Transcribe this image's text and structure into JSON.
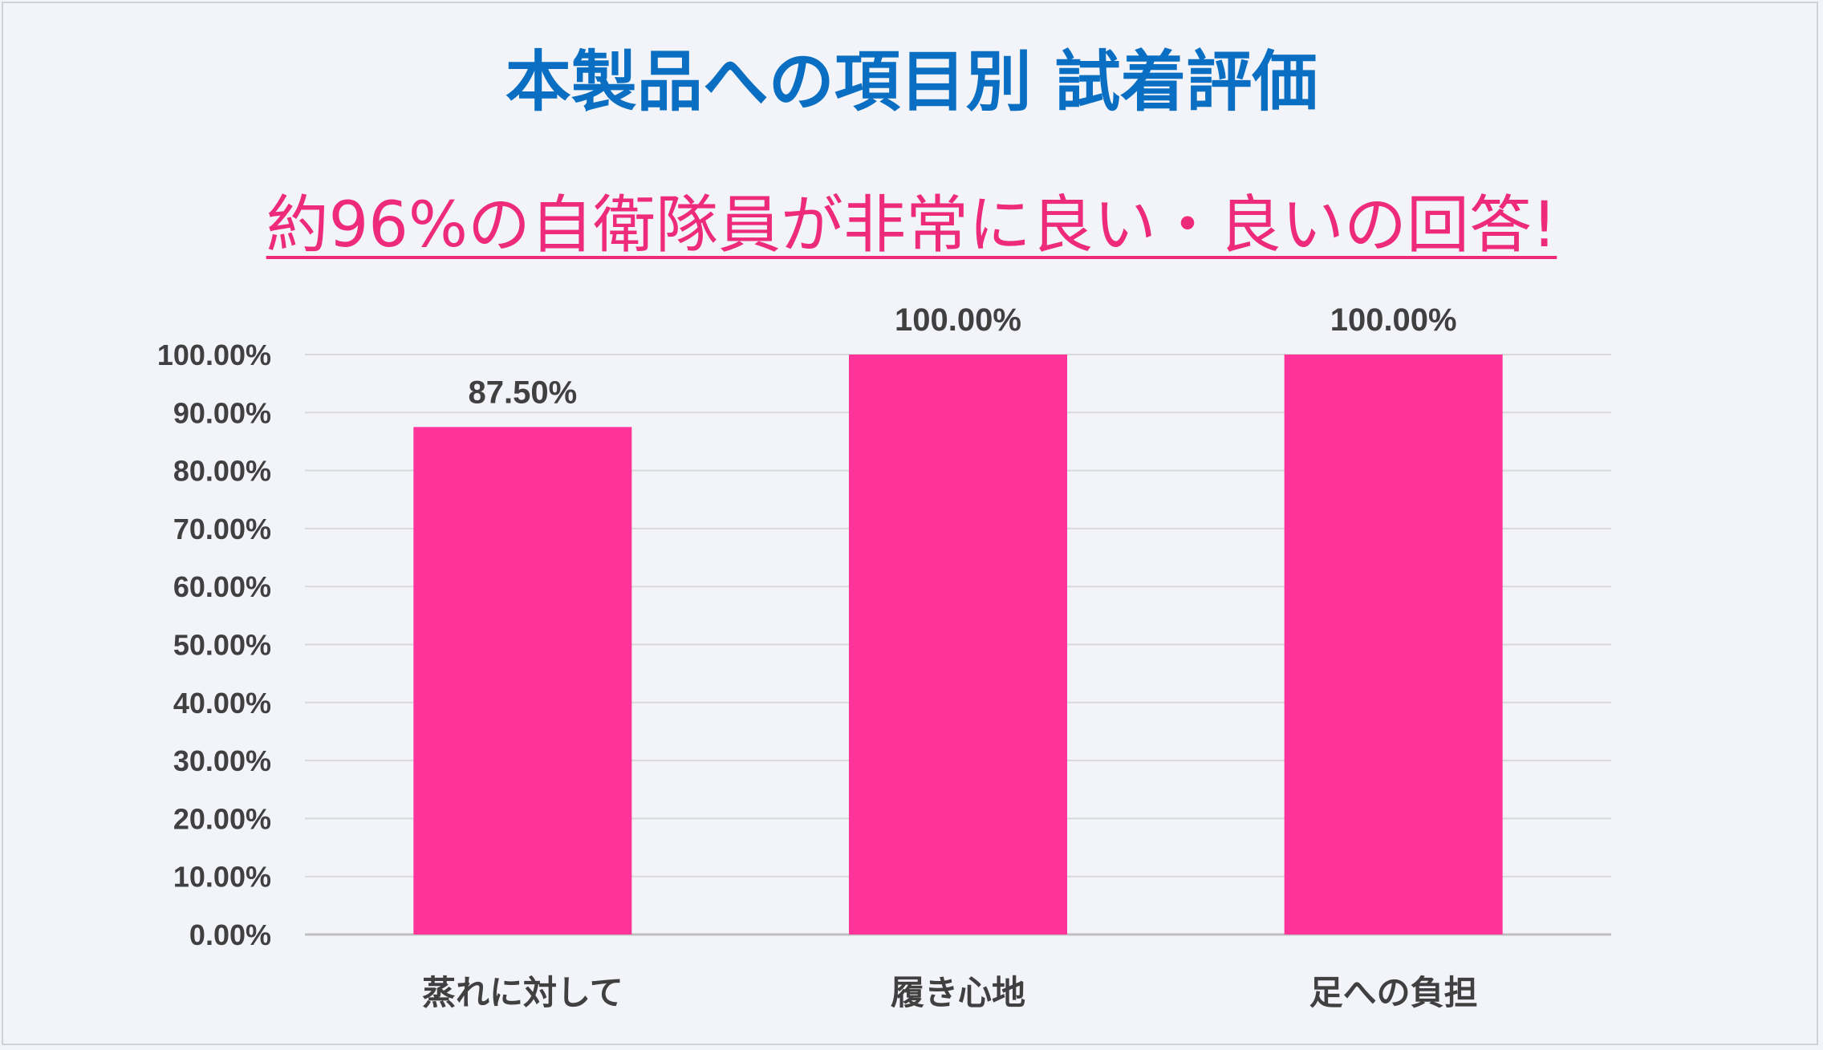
{
  "chart_data": {
    "type": "bar",
    "title": "本製品への項目別 試着評価",
    "subtitle": "約96%の自衛隊員が非常に良い・良いの回答!",
    "categories": [
      "蒸れに対して",
      "履き心地",
      "足への負担"
    ],
    "values": [
      87.5,
      100.0,
      100.0
    ],
    "data_labels": [
      "87.50%",
      "100.00%",
      "100.00%"
    ],
    "y_ticks": [
      "0.00%",
      "10.00%",
      "20.00%",
      "30.00%",
      "40.00%",
      "50.00%",
      "60.00%",
      "70.00%",
      "80.00%",
      "90.00%",
      "100.00%"
    ],
    "ylim": [
      0,
      100
    ],
    "xlabel": "",
    "ylabel": "",
    "grid": true,
    "bar_color": "#ff3399",
    "title_color": "#0a6fc2",
    "subtitle_color": "#ee2a7b"
  }
}
